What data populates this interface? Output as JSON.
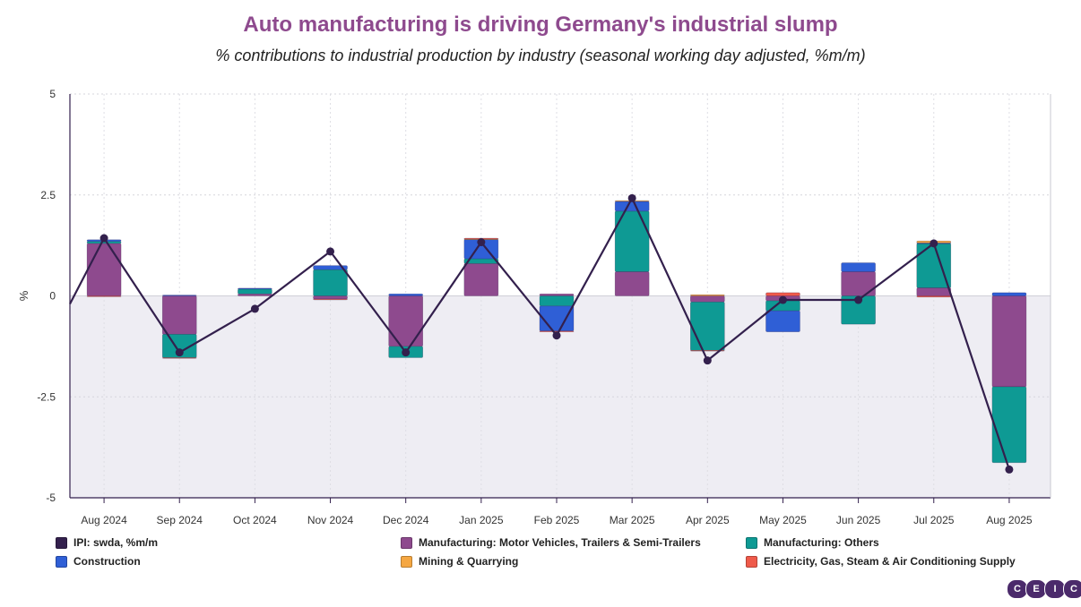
{
  "chart_data": {
    "type": "bar",
    "title": "Auto manufacturing is driving Germany's industrial slump",
    "subtitle": "% contributions to industrial production by industry (seasonal working day adjusted, %m/m)",
    "ylabel": "%",
    "ylim": [
      -5,
      5
    ],
    "yticks": [
      5,
      2.5,
      0,
      -2.5,
      -5
    ],
    "ytick_labels": [
      "5",
      "2.5",
      "0",
      "-2.5",
      "-5"
    ],
    "stacked": true,
    "grid": true,
    "categories": [
      "Aug 2024",
      "Sep 2024",
      "Oct 2024",
      "Nov 2024",
      "Dec 2024",
      "Jan 2025",
      "Feb 2025",
      "Mar 2025",
      "Apr 2025",
      "May 2025",
      "Jun 2025",
      "Jul 2025",
      "Aug 2025"
    ],
    "series": [
      {
        "name": "Manufacturing: Motor Vehicles, Trailers & Semi-Trailers",
        "color": "#8e4a8e",
        "values": [
          1.3,
          -0.95,
          0.05,
          -0.08,
          -1.25,
          0.8,
          0.05,
          0.6,
          -0.15,
          -0.12,
          0.6,
          0.2,
          -2.25
        ]
      },
      {
        "name": "Manufacturing: Others",
        "color": "#0e9a94",
        "values": [
          0.05,
          -0.58,
          0.12,
          0.65,
          -0.28,
          0.12,
          -0.25,
          1.5,
          -1.2,
          -0.25,
          -0.7,
          1.1,
          -1.88
        ]
      },
      {
        "name": "Construction",
        "color": "#2f5fd6",
        "values": [
          0.04,
          0.02,
          0.02,
          0.1,
          0.05,
          0.48,
          -0.62,
          0.24,
          0.0,
          -0.52,
          0.22,
          0.01,
          0.08
        ]
      },
      {
        "name": "Mining & Quarrying",
        "color": "#f5a742",
        "values": [
          0.0,
          0.0,
          0.0,
          0.0,
          0.0,
          0.01,
          0.0,
          0.02,
          0.03,
          0.0,
          0.0,
          0.05,
          0.0
        ]
      },
      {
        "name": "Electricity, Gas, Steam & Air Conditioning Supply",
        "color": "#ef5a4a",
        "values": [
          -0.02,
          -0.01,
          0.0,
          -0.01,
          0.0,
          0.02,
          -0.02,
          0.0,
          -0.01,
          0.08,
          0.0,
          -0.03,
          0.0
        ]
      }
    ],
    "line": {
      "name": "IPI: swda, %m/m",
      "color": "#33204d",
      "values": [
        1.43,
        -1.4,
        -0.32,
        1.1,
        -1.4,
        1.33,
        -0.98,
        2.42,
        -1.6,
        -0.1,
        -0.1,
        1.3,
        -4.3
      ]
    }
  },
  "legend": [
    {
      "label": "IPI: swda, %m/m",
      "color": "#33204d"
    },
    {
      "label": "Manufacturing: Motor Vehicles, Trailers & Semi-Trailers",
      "color": "#8e4a8e"
    },
    {
      "label": "Manufacturing: Others",
      "color": "#0e9a94"
    },
    {
      "label": "Construction",
      "color": "#2f5fd6"
    },
    {
      "label": "Mining & Quarrying",
      "color": "#f5a742"
    },
    {
      "label": "Electricity, Gas, Steam & Air Conditioning Supply",
      "color": "#ef5a4a"
    }
  ],
  "logo": {
    "letters": [
      "C",
      "E",
      "I",
      "C"
    ]
  }
}
